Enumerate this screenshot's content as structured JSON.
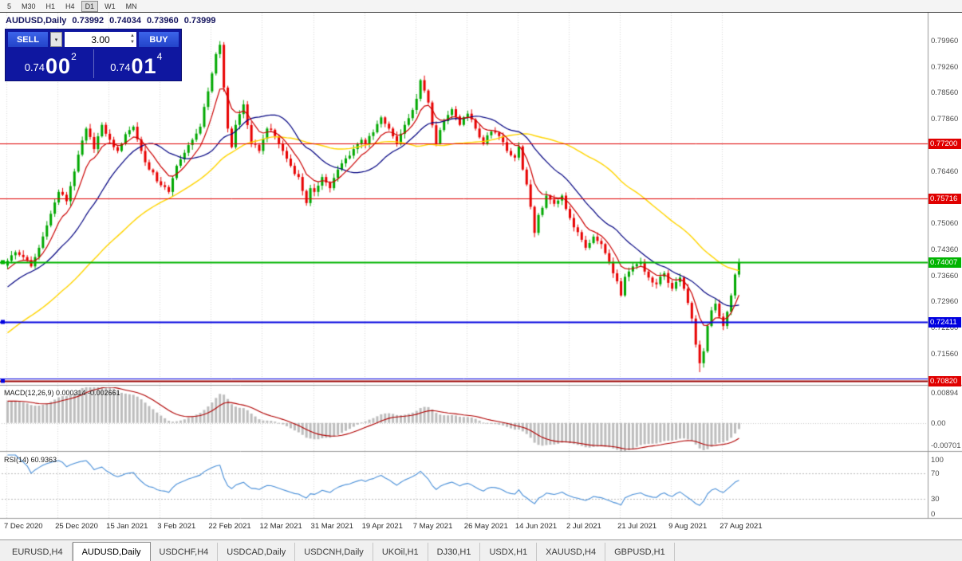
{
  "toolbar": {
    "timeframes": [
      "5",
      "M30",
      "H1",
      "H4",
      "D1",
      "W1",
      "MN"
    ],
    "active": "D1"
  },
  "quote": {
    "symbol": "AUDUSD,Daily",
    "open": "0.73992",
    "high": "0.74034",
    "low": "0.73960",
    "close": "0.73999"
  },
  "trade_panel": {
    "sell_label": "SELL",
    "buy_label": "BUY",
    "volume": "3.00",
    "sell_price": {
      "head": "0.74",
      "big": "00",
      "sup": "2"
    },
    "buy_price": {
      "head": "0.74",
      "big": "01",
      "sup": "4"
    }
  },
  "colors": {
    "bull": "#00a800",
    "bear": "#e80000",
    "grid": "#d8d8d8",
    "separator": "#999999",
    "ma_fast": "#cc0000",
    "ma_mid": "#000080",
    "ma_slow": "#ffd500",
    "macd_hist": "#bdbdbd",
    "macd_signal": "#b00000",
    "rsi_line": "#4a90d9",
    "panel_bg": "#0f17a0",
    "trade_button": "#2a50d8"
  },
  "tabs": {
    "items": [
      "EURUSD,H4",
      "AUDUSD,Daily",
      "USDCHF,H4",
      "USDCAD,Daily",
      "USDCNH,Daily",
      "UKOil,H1",
      "DJ30,H1",
      "USDX,H1",
      "XAUUSD,H4",
      "GBPUSD,H1"
    ],
    "active": "AUDUSD,Daily"
  },
  "chart_data": {
    "type": "candlestick",
    "symbol": "AUDUSD",
    "timeframe": "Daily",
    "bar_count": 187,
    "first_open": 0.7392,
    "visible_range": {
      "price_top": 0.8071,
      "price_bottom": 0.7074
    },
    "price_ticks": [
      "0.79960",
      "0.79260",
      "0.78560",
      "0.77860",
      "0.77160",
      "0.76460",
      "0.75760",
      "0.75060",
      "0.74360",
      "0.73660",
      "0.72960",
      "0.72260",
      "0.71560",
      "0.70860"
    ],
    "x_labels": [
      "7 Dec 2020",
      "25 Dec 2020",
      "15 Jan 2021",
      "3 Feb 2021",
      "22 Feb 2021",
      "12 Mar 2021",
      "31 Mar 2021",
      "19 Apr 2021",
      "7 May 2021",
      "26 May 2021",
      "14 Jun 2021",
      "2 Jul 2021",
      "21 Jul 2021",
      "9 Aug 2021",
      "27 Aug 2021"
    ],
    "label_every_n_bars": 13,
    "price_path_waypoints": [
      [
        0,
        0.7405
      ],
      [
        2,
        0.7428
      ],
      [
        4,
        0.7415
      ],
      [
        6,
        0.739
      ],
      [
        8,
        0.744
      ],
      [
        10,
        0.75
      ],
      [
        13,
        0.759
      ],
      [
        15,
        0.7565
      ],
      [
        18,
        0.769
      ],
      [
        20,
        0.776
      ],
      [
        22,
        0.7705
      ],
      [
        24,
        0.777
      ],
      [
        26,
        0.773
      ],
      [
        28,
        0.77
      ],
      [
        30,
        0.7745
      ],
      [
        32,
        0.7765
      ],
      [
        34,
        0.77
      ],
      [
        36,
        0.765
      ],
      [
        39,
        0.7608
      ],
      [
        41,
        0.759
      ],
      [
        43,
        0.766
      ],
      [
        45,
        0.7695
      ],
      [
        47,
        0.773
      ],
      [
        49,
        0.7765
      ],
      [
        51,
        0.786
      ],
      [
        53,
        0.796
      ],
      [
        54,
        0.7985
      ],
      [
        55,
        0.787
      ],
      [
        56,
        0.776
      ],
      [
        57,
        0.771
      ],
      [
        58,
        0.777
      ],
      [
        60,
        0.7825
      ],
      [
        62,
        0.772
      ],
      [
        64,
        0.77
      ],
      [
        66,
        0.776
      ],
      [
        68,
        0.774
      ],
      [
        70,
        0.77
      ],
      [
        72,
        0.766
      ],
      [
        74,
        0.763
      ],
      [
        76,
        0.756
      ],
      [
        77,
        0.76
      ],
      [
        78,
        0.759
      ],
      [
        80,
        0.763
      ],
      [
        82,
        0.76
      ],
      [
        84,
        0.765
      ],
      [
        86,
        0.768
      ],
      [
        88,
        0.7705
      ],
      [
        90,
        0.773
      ],
      [
        91,
        0.7718
      ],
      [
        93,
        0.775
      ],
      [
        95,
        0.779
      ],
      [
        97,
        0.776
      ],
      [
        99,
        0.772
      ],
      [
        101,
        0.777
      ],
      [
        103,
        0.781
      ],
      [
        104,
        0.784
      ],
      [
        105,
        0.789
      ],
      [
        107,
        0.783
      ],
      [
        109,
        0.772
      ],
      [
        111,
        0.778
      ],
      [
        113,
        0.7812
      ],
      [
        115,
        0.777
      ],
      [
        117,
        0.78
      ],
      [
        119,
        0.776
      ],
      [
        121,
        0.7718
      ],
      [
        123,
        0.7752
      ],
      [
        125,
        0.774
      ],
      [
        127,
        0.77
      ],
      [
        129,
        0.7682
      ],
      [
        130,
        0.7712
      ],
      [
        131,
        0.765
      ],
      [
        132,
        0.761
      ],
      [
        133,
        0.755
      ],
      [
        134,
        0.748
      ],
      [
        135,
        0.7528
      ],
      [
        137,
        0.758
      ],
      [
        139,
        0.7558
      ],
      [
        141,
        0.758
      ],
      [
        143,
        0.752
      ],
      [
        145,
        0.7482
      ],
      [
        147,
        0.744
      ],
      [
        149,
        0.747
      ],
      [
        151,
        0.745
      ],
      [
        153,
        0.7402
      ],
      [
        155,
        0.735
      ],
      [
        156,
        0.7312
      ],
      [
        157,
        0.7362
      ],
      [
        159,
        0.739
      ],
      [
        161,
        0.7402
      ],
      [
        163,
        0.736
      ],
      [
        165,
        0.7342
      ],
      [
        167,
        0.7372
      ],
      [
        169,
        0.733
      ],
      [
        171,
        0.736
      ],
      [
        172,
        0.733
      ],
      [
        173,
        0.7292
      ],
      [
        174,
        0.725
      ],
      [
        175,
        0.718
      ],
      [
        176,
        0.713
      ],
      [
        177,
        0.7162
      ],
      [
        178,
        0.723
      ],
      [
        179,
        0.7272
      ],
      [
        180,
        0.729
      ],
      [
        181,
        0.7255
      ],
      [
        182,
        0.723
      ],
      [
        183,
        0.7268
      ],
      [
        184,
        0.7312
      ],
      [
        185,
        0.7368
      ],
      [
        186,
        0.73999
      ]
    ],
    "notable_points": {
      "peak": {
        "index": 54,
        "price": 0.7995
      },
      "trough": {
        "index": 176,
        "price": 0.7106
      }
    },
    "horizontal_lines": [
      {
        "price": 0.772,
        "label": "0.77200",
        "color": "#e00000",
        "width": 1
      },
      {
        "price": 0.75716,
        "label": "0.75716",
        "color": "#e00000",
        "width": 1
      },
      {
        "price": 0.74007,
        "label": "0.74007",
        "color": "#00b400",
        "width": 2,
        "handle": "#00b400"
      },
      {
        "price": 0.72411,
        "label": "0.72411",
        "color": "#0000e0",
        "width": 2,
        "handle": "#0000e0"
      },
      {
        "price": 0.709,
        "label": "",
        "color": "#0000e0",
        "width": 1
      },
      {
        "price": 0.7082,
        "label": "0.70820",
        "color": "#990000",
        "width": 2,
        "badge_color": "#e00000",
        "handle": "#0000e0"
      }
    ],
    "moving_averages": [
      {
        "name": "ma-fast",
        "type": "ema",
        "period": 8
      },
      {
        "name": "ma-mid",
        "type": "sma",
        "period": 20
      },
      {
        "name": "ma-slow",
        "type": "sma",
        "period": 50
      }
    ],
    "indicators": {
      "macd": {
        "label": "MACD(12,26,9) 0.000314 -0.002661",
        "params": "12,26,9",
        "values": [
          0.000314,
          -0.002661
        ],
        "axis_labels": [
          "0.00894",
          "0.00",
          "-0.00701"
        ]
      },
      "rsi": {
        "label": "RSI(14) 60.9363",
        "params": "14",
        "value": 60.9363,
        "axis_labels": [
          "100",
          "70",
          "30",
          "0"
        ],
        "levels": [
          70,
          30
        ]
      }
    }
  }
}
